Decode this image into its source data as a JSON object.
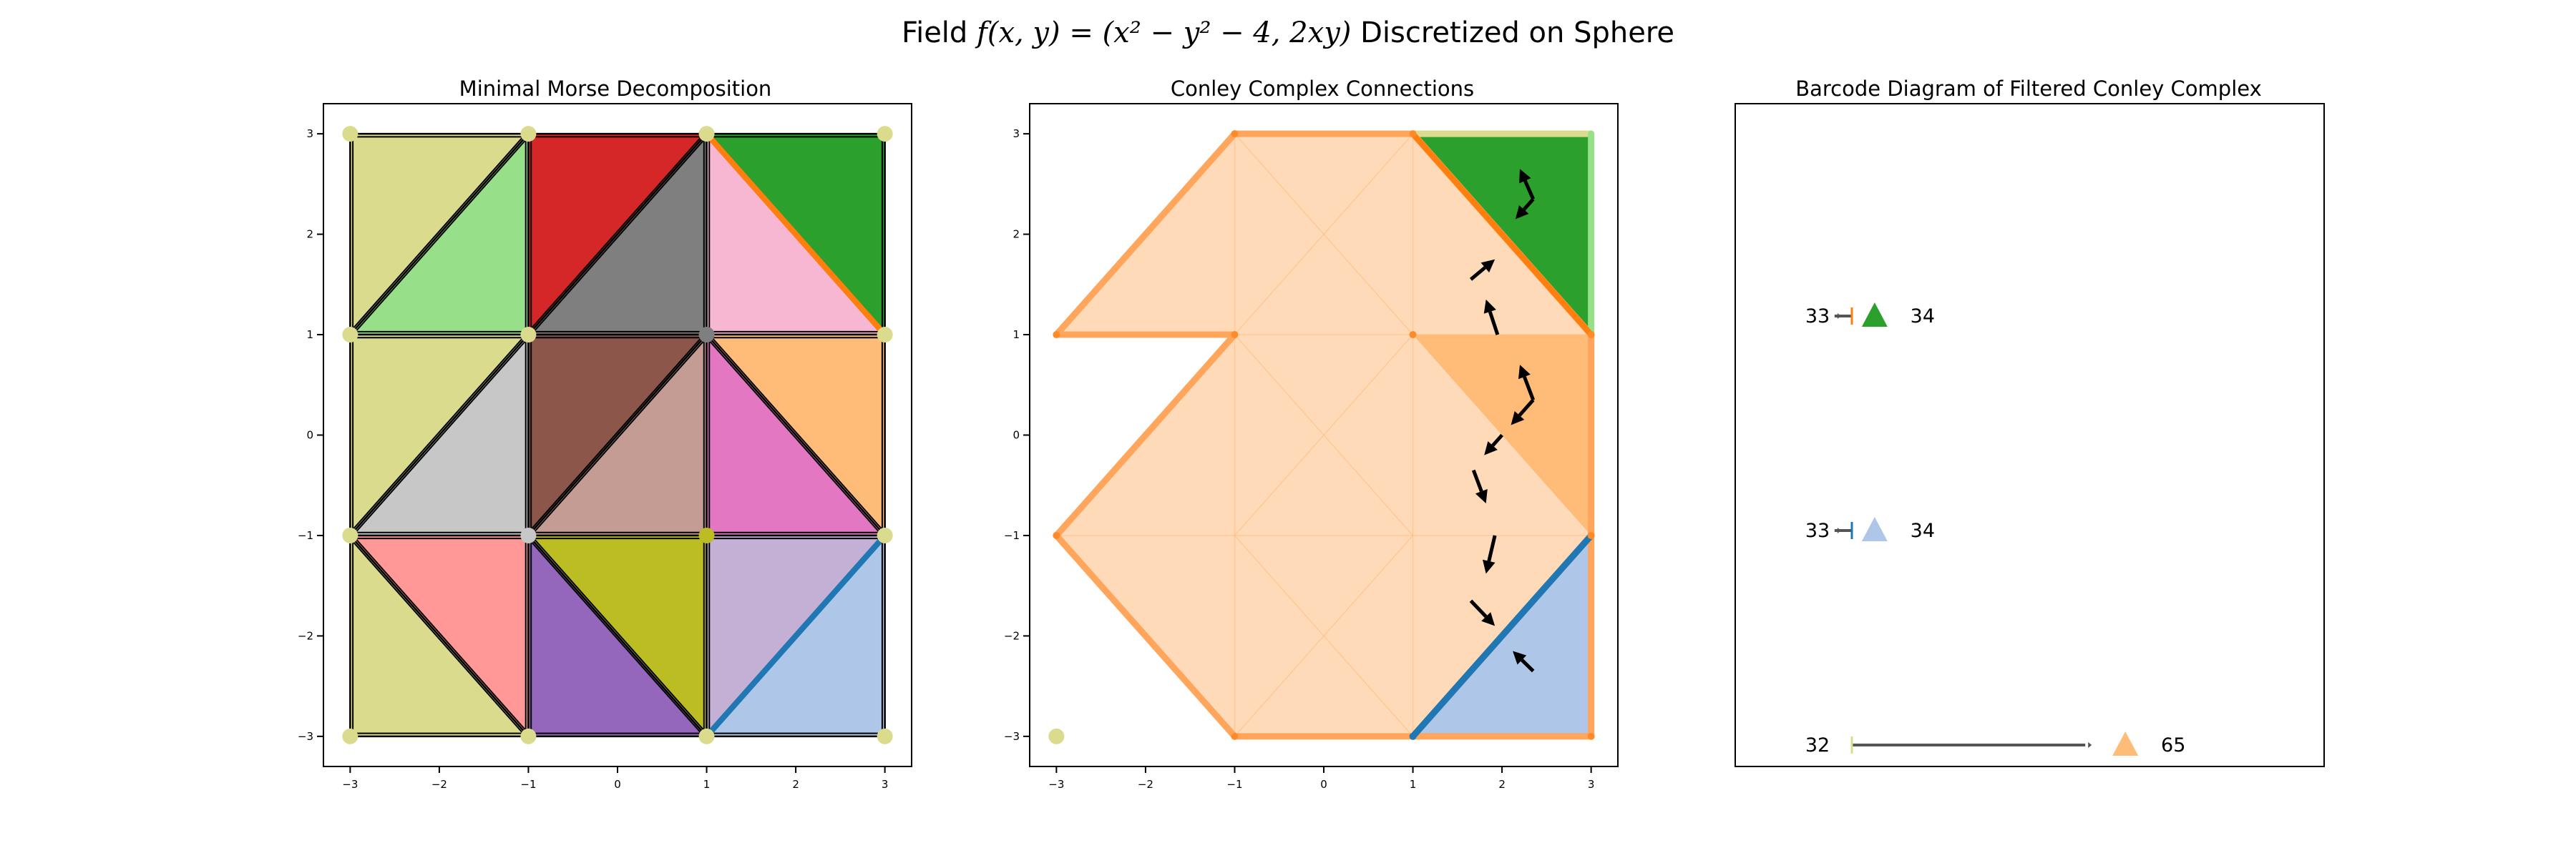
{
  "figure": {
    "title_pre": "Field ",
    "title_math": "f(x, y) = (x² − y² − 4, 2xy)",
    "title_post": " Discretized on Sphere"
  },
  "colors": {
    "c_olive": "#dbdb8d",
    "c_lightgreen": "#98df8a",
    "c_red": "#d62728",
    "c_gray": "#7f7f7f",
    "c_pink": "#f7b6d2",
    "c_green": "#2ca02c",
    "c_lightgray": "#c7c7c7",
    "c_brown": "#8c564b",
    "c_lightbrown": "#c49c94",
    "c_lightorange": "#ffbb78",
    "c_magenta": "#e377c2",
    "c_salmon": "#ff9896",
    "c_purple": "#9467bd",
    "c_mustard": "#bcbd22",
    "c_lavender": "#c5b0d5",
    "c_lightblue": "#aec7e8",
    "c_blue": "#1f77b4",
    "c_orange": "#ff7f0e",
    "c_peach": "#ffdab9"
  },
  "chart_data": [
    {
      "type": "other",
      "title": "Minimal Morse Decomposition",
      "xlim": [
        -3.3,
        3.3
      ],
      "ylim": [
        -3.3,
        3.3
      ],
      "xticks": [
        -3,
        -2,
        -1,
        0,
        1,
        2,
        3
      ],
      "yticks": [
        -3,
        -2,
        -1,
        0,
        1,
        2,
        3
      ],
      "triangles": [
        {
          "pts": [
            [
              -3,
              3
            ],
            [
              -3,
              1
            ],
            [
              -1,
              3
            ]
          ],
          "color": "#dbdb8d"
        },
        {
          "pts": [
            [
              -3,
              1
            ],
            [
              -1,
              1
            ],
            [
              -1,
              3
            ]
          ],
          "color": "#98df8a"
        },
        {
          "pts": [
            [
              -1,
              3
            ],
            [
              -1,
              1
            ],
            [
              1,
              3
            ]
          ],
          "color": "#d62728"
        },
        {
          "pts": [
            [
              -1,
              1
            ],
            [
              1,
              1
            ],
            [
              1,
              3
            ]
          ],
          "color": "#7f7f7f"
        },
        {
          "pts": [
            [
              1,
              3
            ],
            [
              1,
              1
            ],
            [
              3,
              1
            ]
          ],
          "color": "#f7b6d2"
        },
        {
          "pts": [
            [
              1,
              3
            ],
            [
              3,
              3
            ],
            [
              3,
              1
            ]
          ],
          "color": "#2ca02c"
        },
        {
          "pts": [
            [
              -3,
              1
            ],
            [
              -3,
              -1
            ],
            [
              -1,
              1
            ]
          ],
          "color": "#dbdb8d"
        },
        {
          "pts": [
            [
              -3,
              -1
            ],
            [
              -1,
              -1
            ],
            [
              -1,
              1
            ]
          ],
          "color": "#c7c7c7"
        },
        {
          "pts": [
            [
              -1,
              1
            ],
            [
              -1,
              -1
            ],
            [
              1,
              1
            ]
          ],
          "color": "#8c564b"
        },
        {
          "pts": [
            [
              -1,
              -1
            ],
            [
              1,
              -1
            ],
            [
              1,
              1
            ]
          ],
          "color": "#c49c94"
        },
        {
          "pts": [
            [
              1,
              1
            ],
            [
              3,
              1
            ],
            [
              3,
              -1
            ]
          ],
          "color": "#ffbb78"
        },
        {
          "pts": [
            [
              1,
              1
            ],
            [
              1,
              -1
            ],
            [
              3,
              -1
            ]
          ],
          "color": "#e377c2"
        },
        {
          "pts": [
            [
              -3,
              -1
            ],
            [
              -3,
              -3
            ],
            [
              -1,
              -3
            ]
          ],
          "color": "#dbdb8d"
        },
        {
          "pts": [
            [
              -3,
              -1
            ],
            [
              -1,
              -1
            ],
            [
              -1,
              -3
            ]
          ],
          "color": "#ff9896"
        },
        {
          "pts": [
            [
              -1,
              -1
            ],
            [
              -1,
              -3
            ],
            [
              1,
              -3
            ]
          ],
          "color": "#9467bd"
        },
        {
          "pts": [
            [
              -1,
              -1
            ],
            [
              1,
              -1
            ],
            [
              1,
              -3
            ]
          ],
          "color": "#bcbd22"
        },
        {
          "pts": [
            [
              1,
              -1
            ],
            [
              1,
              -3
            ],
            [
              3,
              -1
            ]
          ],
          "color": "#c5b0d5"
        },
        {
          "pts": [
            [
              1,
              -3
            ],
            [
              3,
              -3
            ],
            [
              3,
              -1
            ]
          ],
          "color": "#aec7e8"
        }
      ],
      "edges": [
        {
          "p": [
            [
              1,
              3
            ],
            [
              3,
              1
            ]
          ],
          "color": "#ff7f0e"
        },
        {
          "p": [
            [
              1,
              -3
            ],
            [
              3,
              -1
            ]
          ],
          "color": "#1f77b4"
        }
      ],
      "vertices": [
        {
          "p": [
            -3,
            3
          ],
          "color": "#dbdb8d"
        },
        {
          "p": [
            -1,
            3
          ],
          "color": "#dbdb8d"
        },
        {
          "p": [
            1,
            3
          ],
          "color": "#dbdb8d"
        },
        {
          "p": [
            3,
            3
          ],
          "color": "#dbdb8d"
        },
        {
          "p": [
            -3,
            1
          ],
          "color": "#dbdb8d"
        },
        {
          "p": [
            -1,
            1
          ],
          "color": "#dbdb8d"
        },
        {
          "p": [
            1,
            1
          ],
          "color": "#7f7f7f"
        },
        {
          "p": [
            3,
            1
          ],
          "color": "#dbdb8d"
        },
        {
          "p": [
            -3,
            -1
          ],
          "color": "#dbdb8d"
        },
        {
          "p": [
            -1,
            -1
          ],
          "color": "#c7c7c7"
        },
        {
          "p": [
            1,
            -1
          ],
          "color": "#bcbd22"
        },
        {
          "p": [
            3,
            -1
          ],
          "color": "#dbdb8d"
        },
        {
          "p": [
            -3,
            -3
          ],
          "color": "#dbdb8d"
        },
        {
          "p": [
            -1,
            -3
          ],
          "color": "#dbdb8d"
        },
        {
          "p": [
            1,
            -3
          ],
          "color": "#dbdb8d"
        },
        {
          "p": [
            3,
            -3
          ],
          "color": "#dbdb8d"
        }
      ]
    },
    {
      "type": "other",
      "title": "Conley Complex Connections",
      "xlim": [
        -3.3,
        3.3
      ],
      "ylim": [
        -3.3,
        3.3
      ],
      "xticks": [
        -3,
        -2,
        -1,
        0,
        1,
        2,
        3
      ],
      "yticks": [
        -3,
        -2,
        -1,
        0,
        1,
        2,
        3
      ],
      "region_peach": [
        [
          -1,
          3
        ],
        [
          1,
          3
        ],
        [
          3,
          1
        ],
        [
          3,
          -1
        ],
        [
          1,
          -3
        ],
        [
          -1,
          -3
        ],
        [
          -3,
          -1
        ],
        [
          -1,
          1
        ],
        [
          -3,
          1
        ]
      ],
      "region_green": [
        [
          1,
          3
        ],
        [
          3,
          3
        ],
        [
          3,
          1
        ]
      ],
      "region_orange": [
        [
          1,
          1
        ],
        [
          3,
          1
        ],
        [
          3,
          -1
        ]
      ],
      "region_blue": [
        [
          1,
          -3
        ],
        [
          3,
          -3
        ],
        [
          3,
          -1
        ]
      ],
      "peach_edges": [
        [
          [
            -1,
            3
          ],
          [
            -1,
            -3
          ]
        ],
        [
          [
            1,
            3
          ],
          [
            1,
            -3
          ]
        ],
        [
          [
            -3,
            -1
          ],
          [
            3,
            -1
          ]
        ],
        [
          [
            -1,
            1
          ],
          [
            3,
            1
          ]
        ],
        [
          [
            -1,
            3
          ],
          [
            1,
            1
          ]
        ],
        [
          [
            -1,
            1
          ],
          [
            1,
            -1
          ]
        ],
        [
          [
            -1,
            -1
          ],
          [
            1,
            -3
          ]
        ],
        [
          [
            -1,
            1
          ],
          [
            1,
            3
          ]
        ],
        [
          [
            -1,
            -1
          ],
          [
            1,
            1
          ]
        ],
        [
          [
            -1,
            -3
          ],
          [
            1,
            -1
          ]
        ]
      ],
      "arrows": [
        {
          "from": [
            1.65,
            1.55
          ],
          "to": [
            1.92,
            1.75
          ]
        },
        {
          "from": [
            1.95,
            1.0
          ],
          "to": [
            1.82,
            1.35
          ]
        },
        {
          "from": [
            2.35,
            2.35
          ],
          "to": [
            2.2,
            2.65
          ]
        },
        {
          "from": [
            2.35,
            2.35
          ],
          "to": [
            2.15,
            2.15
          ]
        },
        {
          "from": [
            2.35,
            0.35
          ],
          "to": [
            2.2,
            0.7
          ]
        },
        {
          "from": [
            2.35,
            0.35
          ],
          "to": [
            2.1,
            0.1
          ]
        },
        {
          "from": [
            2.0,
            0.0
          ],
          "to": [
            1.8,
            -0.2
          ]
        },
        {
          "from": [
            1.68,
            -0.35
          ],
          "to": [
            1.82,
            -0.68
          ]
        },
        {
          "from": [
            1.92,
            -1.0
          ],
          "to": [
            1.82,
            -1.38
          ]
        },
        {
          "from": [
            1.65,
            -1.65
          ],
          "to": [
            1.92,
            -1.9
          ]
        },
        {
          "from": [
            2.35,
            -2.35
          ],
          "to": [
            2.12,
            -2.15
          ]
        }
      ],
      "isolated_point": {
        "p": [
          -3,
          -3
        ],
        "color": "#dbdb8d"
      }
    },
    {
      "type": "barcode",
      "title": "Barcode Diagram of Filtered Conley Complex",
      "bars": [
        {
          "start": 33,
          "end": 34,
          "start_label": "33",
          "end_label": "34",
          "tick_color": "#ff7f0e",
          "marker_color": "#2ca02c",
          "bar_end": 0.19
        },
        {
          "start": 33,
          "end": 34,
          "start_label": "33",
          "end_label": "34",
          "tick_color": "#1f77b4",
          "marker_color": "#aec7e8",
          "bar_end": 0.19
        },
        {
          "start": 32,
          "end": 65,
          "start_label": "32",
          "end_label": "65",
          "tick_color": "#dbdb8d",
          "marker_color": "#ffbb78",
          "bar_end": 0.68
        }
      ]
    }
  ]
}
